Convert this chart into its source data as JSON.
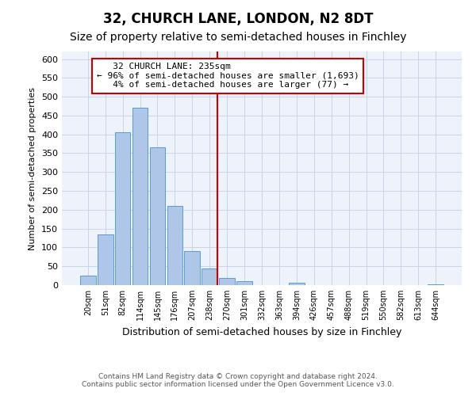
{
  "title": "32, CHURCH LANE, LONDON, N2 8DT",
  "subtitle": "Size of property relative to semi-detached houses in Finchley",
  "xlabel": "Distribution of semi-detached houses by size in Finchley",
  "ylabel": "Number of semi-detached properties",
  "footer_line1": "Contains HM Land Registry data © Crown copyright and database right 2024.",
  "footer_line2": "Contains public sector information licensed under the Open Government Licence v3.0.",
  "categories": [
    "20sqm",
    "51sqm",
    "82sqm",
    "114sqm",
    "145sqm",
    "176sqm",
    "207sqm",
    "238sqm",
    "270sqm",
    "301sqm",
    "332sqm",
    "363sqm",
    "394sqm",
    "426sqm",
    "457sqm",
    "488sqm",
    "519sqm",
    "550sqm",
    "582sqm",
    "613sqm",
    "644sqm"
  ],
  "values": [
    25,
    135,
    405,
    470,
    365,
    210,
    90,
    45,
    18,
    10,
    0,
    0,
    7,
    0,
    0,
    0,
    0,
    0,
    0,
    0,
    2
  ],
  "ylim": [
    0,
    620
  ],
  "yticks": [
    0,
    50,
    100,
    150,
    200,
    250,
    300,
    350,
    400,
    450,
    500,
    550,
    600
  ],
  "bar_color": "#aec6e8",
  "bar_edge_color": "#5b9bd5",
  "property_label": "32 CHURCH LANE: 235sqm",
  "pct_smaller": 96,
  "count_smaller": 1693,
  "pct_larger": 4,
  "count_larger": 77,
  "vline_color": "#cc0000",
  "annotation_box_edge_color": "#cc0000",
  "grid_color": "#c8d4e8",
  "background_color": "#eef2fa",
  "title_fontsize": 12,
  "subtitle_fontsize": 10,
  "annotation_fontsize": 8
}
